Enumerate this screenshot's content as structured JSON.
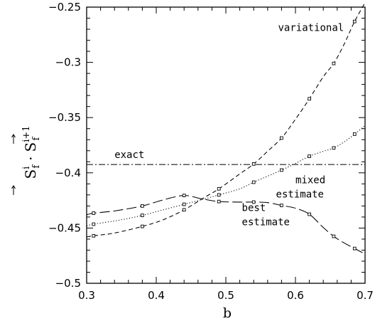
{
  "chart_data": {
    "type": "line",
    "xlabel": "b",
    "ylabel": {
      "main_a": "S",
      "sub_a": "f",
      "sup_a": "i",
      "dot": "·",
      "main_b": "S",
      "sub_b": "f",
      "sup_b": "i+1"
    },
    "xlim": [
      0.3,
      0.7
    ],
    "ylim": [
      -0.5,
      -0.25
    ],
    "xticks": [
      "0.3",
      "0.4",
      "0.5",
      "0.6",
      "0.7"
    ],
    "yticks": [
      "-0.25",
      "-0.3",
      "-0.35",
      "-0.4",
      "-0.45",
      "-0.5"
    ],
    "xtick_values": [
      0.3,
      0.4,
      0.5,
      0.6,
      0.7
    ],
    "ytick_values": [
      -0.25,
      -0.3,
      -0.35,
      -0.4,
      -0.45,
      -0.5
    ],
    "series": [
      {
        "name": "variational",
        "style": "dashed",
        "x": [
          0.31,
          0.38,
          0.44,
          0.49,
          0.54,
          0.58,
          0.62,
          0.655,
          0.685
        ],
        "y": [
          -0.457,
          -0.4485,
          -0.4335,
          -0.4145,
          -0.392,
          -0.3685,
          -0.333,
          -0.301,
          -0.263
        ],
        "curve_x": [
          0.3,
          0.31,
          0.34,
          0.38,
          0.41,
          0.44,
          0.47,
          0.49,
          0.52,
          0.54,
          0.56,
          0.58,
          0.6,
          0.62,
          0.64,
          0.655,
          0.67,
          0.685,
          0.7
        ],
        "curve_y": [
          -0.458,
          -0.457,
          -0.4545,
          -0.4485,
          -0.4425,
          -0.4335,
          -0.422,
          -0.4145,
          -0.401,
          -0.392,
          -0.3805,
          -0.3685,
          -0.3515,
          -0.333,
          -0.313,
          -0.301,
          -0.2835,
          -0.263,
          -0.246
        ]
      },
      {
        "name": "mixed estimate",
        "style": "dotted",
        "x": [
          0.31,
          0.38,
          0.44,
          0.49,
          0.54,
          0.58,
          0.62,
          0.655,
          0.685
        ],
        "y": [
          -0.4465,
          -0.4385,
          -0.4285,
          -0.42,
          -0.4085,
          -0.3975,
          -0.385,
          -0.3775,
          -0.365
        ],
        "curve_x": [
          0.3,
          0.31,
          0.35,
          0.38,
          0.41,
          0.44,
          0.47,
          0.49,
          0.52,
          0.54,
          0.56,
          0.58,
          0.6,
          0.62,
          0.64,
          0.655,
          0.67,
          0.685,
          0.7
        ],
        "curve_y": [
          -0.448,
          -0.4465,
          -0.4425,
          -0.4385,
          -0.4335,
          -0.4285,
          -0.4235,
          -0.42,
          -0.4145,
          -0.4085,
          -0.403,
          -0.3975,
          -0.3915,
          -0.385,
          -0.3805,
          -0.3775,
          -0.372,
          -0.365,
          -0.357
        ]
      },
      {
        "name": "best estimate",
        "style": "long-dashed",
        "x": [
          0.31,
          0.38,
          0.44,
          0.49,
          0.54,
          0.58,
          0.62,
          0.655,
          0.685
        ],
        "y": [
          -0.4365,
          -0.43,
          -0.4205,
          -0.426,
          -0.4265,
          -0.4295,
          -0.4375,
          -0.4575,
          -0.4685
        ],
        "curve_x": [
          0.3,
          0.31,
          0.34,
          0.38,
          0.41,
          0.44,
          0.465,
          0.49,
          0.52,
          0.54,
          0.56,
          0.58,
          0.6,
          0.62,
          0.64,
          0.655,
          0.67,
          0.685,
          0.7
        ],
        "curve_y": [
          -0.438,
          -0.4365,
          -0.4345,
          -0.43,
          -0.4245,
          -0.4205,
          -0.4235,
          -0.426,
          -0.4265,
          -0.4265,
          -0.427,
          -0.4295,
          -0.432,
          -0.4375,
          -0.4495,
          -0.4575,
          -0.4635,
          -0.4685,
          -0.4735
        ]
      },
      {
        "name": "exact",
        "style": "dash-dot",
        "x": [
          0.3,
          0.7
        ],
        "y": [
          -0.3925,
          -0.3925
        ]
      }
    ],
    "annotations": [
      {
        "text": "variational",
        "x": 0.575,
        "y": -0.2715
      },
      {
        "text": "exact",
        "x": 0.34,
        "y": -0.3865
      },
      {
        "text": "mixed",
        "x": 0.6,
        "y": -0.4095
      },
      {
        "text": "estimate",
        "x": 0.572,
        "y": -0.4225
      },
      {
        "text": "best",
        "x": 0.523,
        "y": -0.4345
      },
      {
        "text": "estimate",
        "x": 0.523,
        "y": -0.4475
      }
    ],
    "grid": false,
    "legend": "none"
  }
}
